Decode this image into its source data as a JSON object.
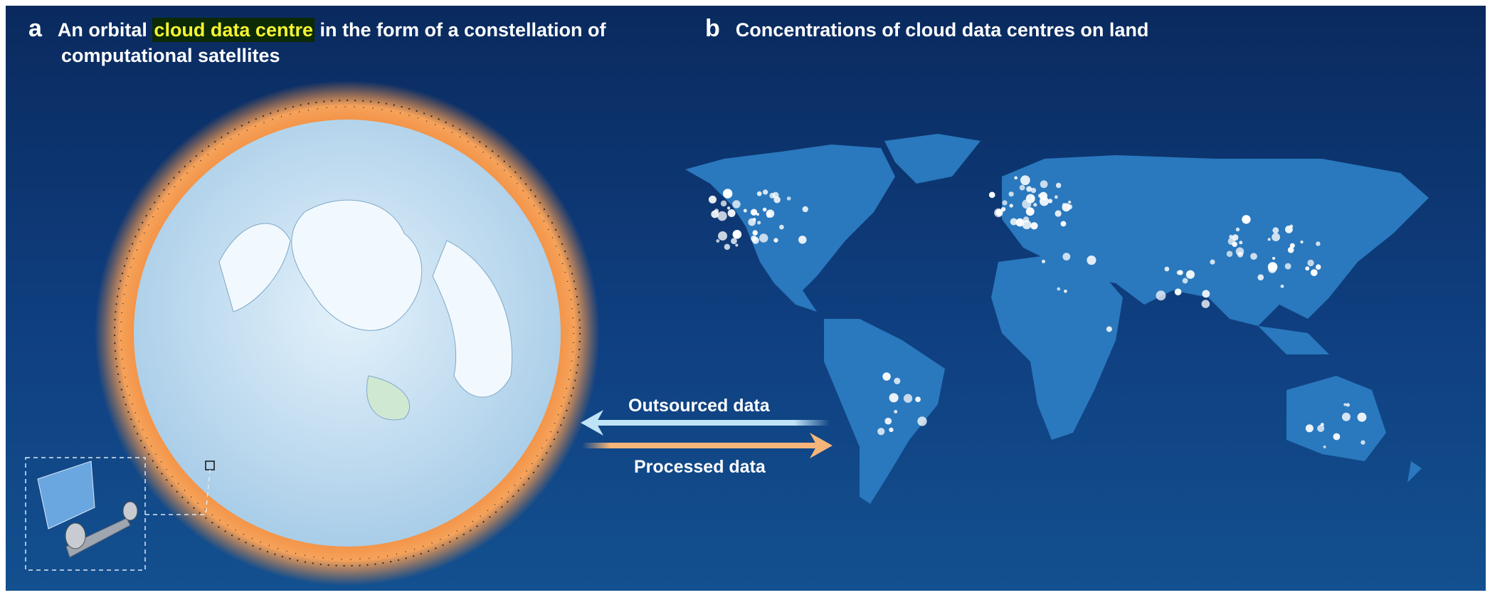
{
  "panel_a": {
    "label": "a",
    "title_before": "An orbital ",
    "title_highlight": "cloud data centre",
    "title_after": " in the form of a constellation of",
    "title_line2": "computational satellites"
  },
  "panel_b": {
    "label": "b",
    "title": "Concentrations of cloud data centres on land"
  },
  "arrows": {
    "outsourced": "Outsourced data",
    "processed": "Processed data"
  },
  "colors": {
    "background": "#0f3f80",
    "highlight_text": "#f5f532",
    "orbit_ring": "#f08a3c",
    "land": "#2a78bd",
    "outsourced_arrow": "#bfe3f7",
    "processed_arrow": "#f5b57a"
  }
}
